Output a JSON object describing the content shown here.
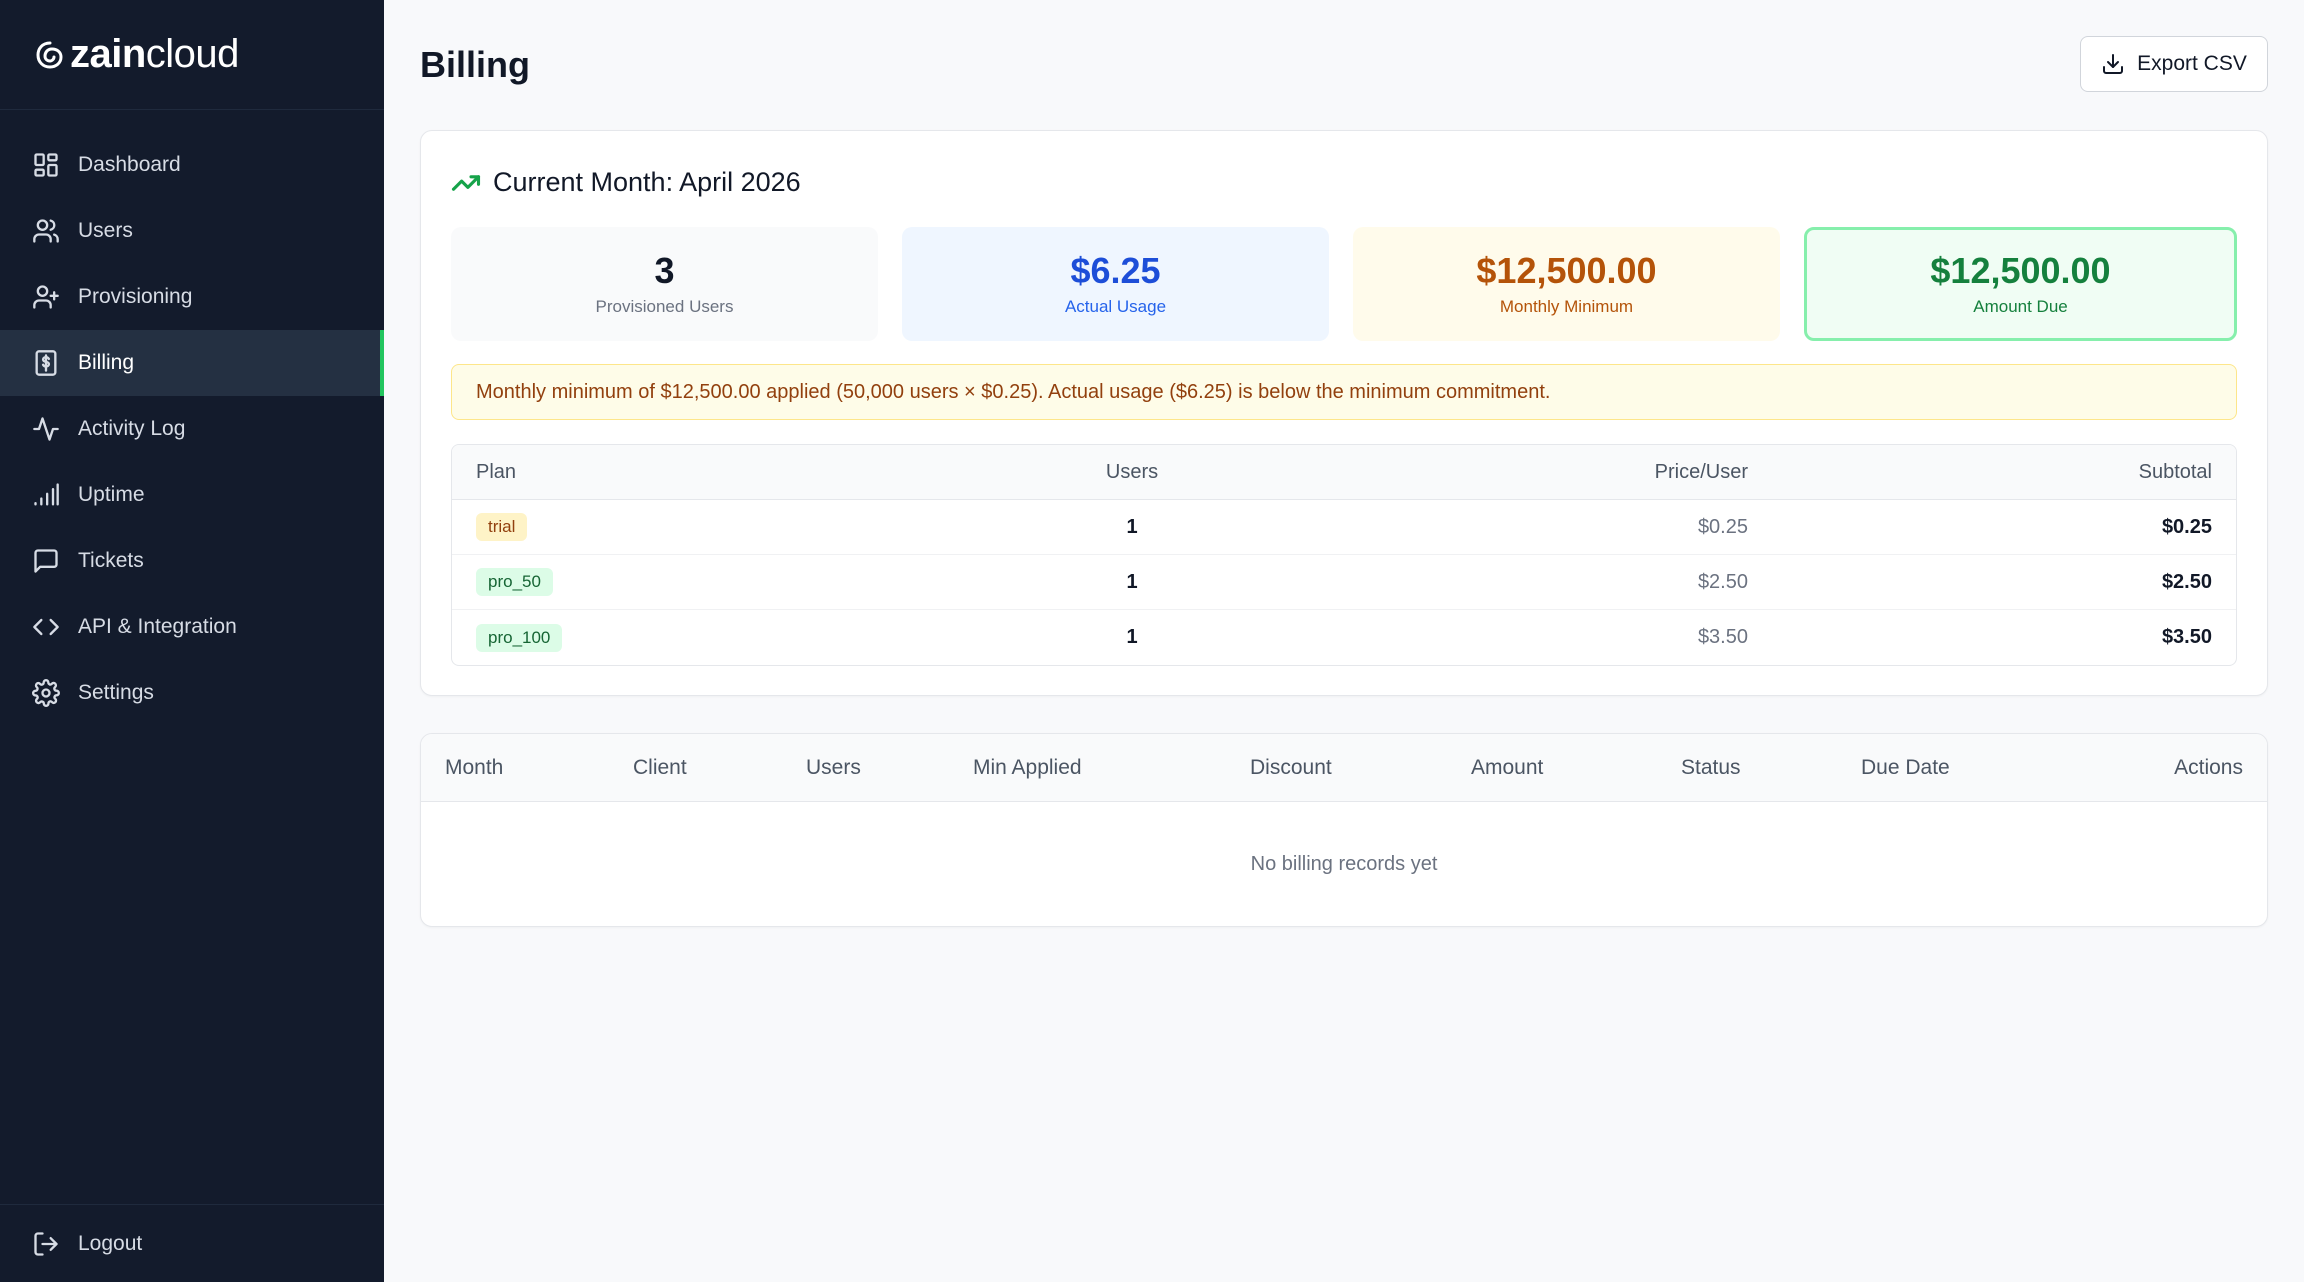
{
  "brand": {
    "name_bold": "zain",
    "name_light": "cloud"
  },
  "sidebar": {
    "items": [
      {
        "label": "Dashboard",
        "icon": "dashboard-icon",
        "active": false
      },
      {
        "label": "Users",
        "icon": "users-icon",
        "active": false
      },
      {
        "label": "Provisioning",
        "icon": "user-plus-icon",
        "active": false
      },
      {
        "label": "Billing",
        "icon": "billing-icon",
        "active": true
      },
      {
        "label": "Activity Log",
        "icon": "activity-icon",
        "active": false
      },
      {
        "label": "Uptime",
        "icon": "signal-icon",
        "active": false
      },
      {
        "label": "Tickets",
        "icon": "message-icon",
        "active": false
      },
      {
        "label": "API & Integration",
        "icon": "code-icon",
        "active": false
      },
      {
        "label": "Settings",
        "icon": "gear-icon",
        "active": false
      }
    ],
    "logout_label": "Logout"
  },
  "header": {
    "title": "Billing",
    "export_label": "Export CSV"
  },
  "current_month": {
    "title": "Current Month: April 2026",
    "stats": [
      {
        "value": "3",
        "label": "Provisioned Users"
      },
      {
        "value": "$6.25",
        "label": "Actual Usage"
      },
      {
        "value": "$12,500.00",
        "label": "Monthly Minimum"
      },
      {
        "value": "$12,500.00",
        "label": "Amount Due"
      }
    ],
    "notice": "Monthly minimum of $12,500.00 applied (50,000 users × $0.25). Actual usage ($6.25) is below the minimum commitment.",
    "plan_table": {
      "columns": [
        "Plan",
        "Users",
        "Price/User",
        "Subtotal"
      ],
      "rows": [
        {
          "plan": "trial",
          "users": "1",
          "price": "$0.25",
          "subtotal": "$0.25"
        },
        {
          "plan": "pro_50",
          "users": "1",
          "price": "$2.50",
          "subtotal": "$2.50"
        },
        {
          "plan": "pro_100",
          "users": "1",
          "price": "$3.50",
          "subtotal": "$3.50"
        }
      ]
    }
  },
  "records": {
    "columns": [
      "Month",
      "Client",
      "Users",
      "Min Applied",
      "Discount",
      "Amount",
      "Status",
      "Due Date",
      "Actions"
    ],
    "empty_text": "No billing records yet"
  },
  "colors": {
    "sidebar_bg": "#131b2c",
    "accent": "#22c55e"
  }
}
